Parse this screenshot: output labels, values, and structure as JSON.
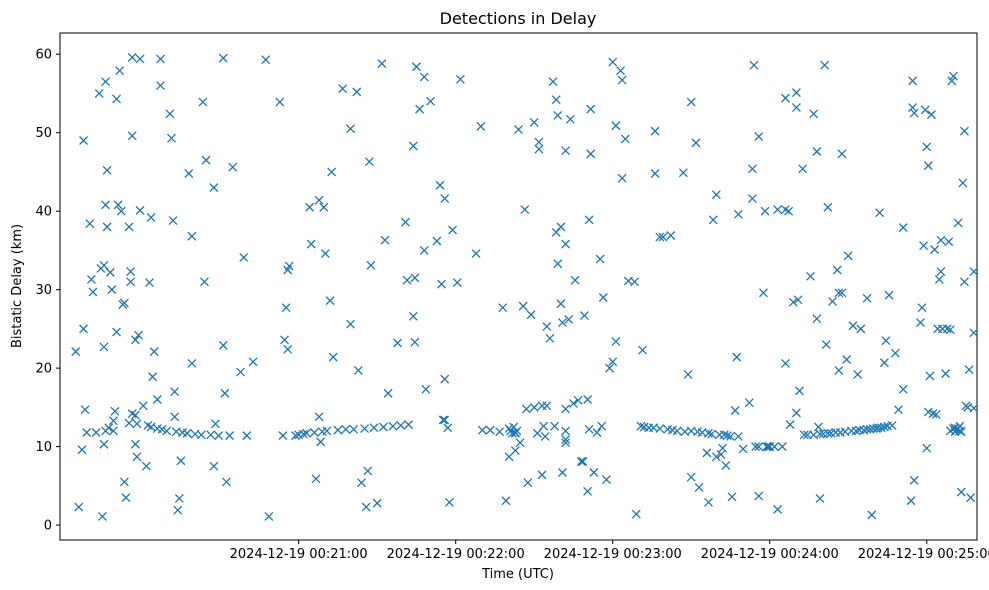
{
  "chart_data": {
    "type": "scatter",
    "title": "Detections in Delay",
    "xlabel": "Time (UTC)",
    "ylabel": "Bistatic Delay (km)",
    "x_unit": "minutes after 2024-12-19 00:20:00",
    "xlim": [
      -0.52,
      5.32
    ],
    "ylim": [
      -1.9,
      62.7
    ],
    "marker": "x",
    "color": "#1f77b4",
    "xtick_values": [
      1,
      2,
      3,
      4,
      5
    ],
    "xtick_labels": [
      "2024-12-19 00:21:00",
      "2024-12-19 00:22:00",
      "2024-12-19 00:23:00",
      "2024-12-19 00:24:00",
      "2024-12-19 00:25:00"
    ],
    "ytick_values": [
      0,
      10,
      20,
      30,
      40,
      50,
      60
    ],
    "ytick_labels": [
      "0",
      "10",
      "20",
      "30",
      "40",
      "50",
      "60"
    ],
    "points": [
      [
        -0.42,
        22.1
      ],
      [
        -0.4,
        2.3
      ],
      [
        -0.38,
        9.6
      ],
      [
        -0.37,
        49.0
      ],
      [
        -0.37,
        25.0
      ],
      [
        -0.36,
        14.7
      ],
      [
        -0.35,
        11.8
      ],
      [
        -0.33,
        38.4
      ],
      [
        -0.32,
        31.3
      ],
      [
        -0.31,
        29.7
      ],
      [
        -0.29,
        11.8
      ],
      [
        -0.27,
        55.0
      ],
      [
        -0.26,
        32.7
      ],
      [
        -0.25,
        1.1
      ],
      [
        -0.24,
        33.1
      ],
      [
        -0.24,
        10.3
      ],
      [
        -0.24,
        22.7
      ],
      [
        -0.23,
        40.8
      ],
      [
        -0.23,
        56.5
      ],
      [
        -0.23,
        12.0
      ],
      [
        -0.22,
        38.0
      ],
      [
        -0.22,
        45.2
      ],
      [
        -0.21,
        12.4
      ],
      [
        -0.2,
        32.2
      ],
      [
        -0.19,
        30.0
      ],
      [
        -0.18,
        13.3
      ],
      [
        -0.18,
        12.0
      ],
      [
        -0.17,
        14.5
      ],
      [
        -0.16,
        54.3
      ],
      [
        -0.16,
        24.6
      ],
      [
        -0.15,
        40.8
      ],
      [
        -0.14,
        57.9
      ],
      [
        -0.13,
        40.0
      ],
      [
        -0.12,
        28.1
      ],
      [
        -0.11,
        28.3
      ],
      [
        -0.11,
        5.5
      ],
      [
        -0.1,
        3.5
      ],
      [
        -0.08,
        38.0
      ],
      [
        -0.08,
        13.0
      ],
      [
        -0.07,
        31.0
      ],
      [
        -0.07,
        32.3
      ],
      [
        -0.06,
        14.2
      ],
      [
        -0.06,
        49.6
      ],
      [
        -0.06,
        59.6
      ],
      [
        -0.04,
        23.6
      ],
      [
        -0.04,
        14.0
      ],
      [
        -0.04,
        10.3
      ],
      [
        -0.03,
        12.9
      ],
      [
        -0.03,
        8.7
      ],
      [
        -0.02,
        24.2
      ],
      [
        -0.01,
        59.4
      ],
      [
        -0.01,
        40.1
      ],
      [
        0.01,
        15.2
      ],
      [
        0.03,
        7.5
      ],
      [
        0.04,
        12.7
      ],
      [
        0.05,
        30.9
      ],
      [
        0.06,
        39.2
      ],
      [
        0.06,
        12.5
      ],
      [
        0.07,
        18.9
      ],
      [
        0.08,
        22.1
      ],
      [
        0.1,
        16.0
      ],
      [
        0.1,
        12.3
      ],
      [
        0.12,
        59.4
      ],
      [
        0.12,
        56.0
      ],
      [
        0.13,
        12.2
      ],
      [
        0.16,
        12.0
      ],
      [
        0.18,
        52.4
      ],
      [
        0.19,
        49.3
      ],
      [
        0.2,
        38.8
      ],
      [
        0.21,
        17.0
      ],
      [
        0.21,
        13.8
      ],
      [
        0.22,
        11.9
      ],
      [
        0.23,
        1.9
      ],
      [
        0.24,
        3.4
      ],
      [
        0.25,
        8.2
      ],
      [
        0.26,
        11.8
      ],
      [
        0.29,
        11.7
      ],
      [
        0.3,
        44.8
      ],
      [
        0.32,
        36.8
      ],
      [
        0.32,
        20.6
      ],
      [
        0.34,
        11.6
      ],
      [
        0.38,
        11.5
      ],
      [
        0.39,
        53.9
      ],
      [
        0.4,
        31.0
      ],
      [
        0.41,
        46.5
      ],
      [
        0.44,
        11.5
      ],
      [
        0.46,
        43.0
      ],
      [
        0.46,
        7.5
      ],
      [
        0.47,
        12.9
      ],
      [
        0.49,
        11.4
      ],
      [
        0.52,
        59.5
      ],
      [
        0.52,
        22.9
      ],
      [
        0.53,
        16.8
      ],
      [
        0.54,
        5.5
      ],
      [
        0.56,
        11.4
      ],
      [
        0.58,
        45.6
      ],
      [
        0.63,
        19.5
      ],
      [
        0.65,
        34.1
      ],
      [
        0.67,
        11.4
      ],
      [
        0.71,
        20.8
      ],
      [
        0.79,
        59.3
      ],
      [
        0.81,
        1.1
      ],
      [
        0.88,
        53.9
      ],
      [
        0.9,
        11.4
      ],
      [
        0.91,
        23.6
      ],
      [
        0.92,
        27.7
      ],
      [
        0.93,
        32.5
      ],
      [
        0.93,
        22.4
      ],
      [
        0.94,
        33.0
      ],
      [
        0.98,
        11.4
      ],
      [
        1.0,
        11.5
      ],
      [
        1.03,
        11.6
      ],
      [
        1.05,
        11.7
      ],
      [
        1.07,
        40.5
      ],
      [
        1.08,
        35.8
      ],
      [
        1.1,
        11.8
      ],
      [
        1.11,
        5.9
      ],
      [
        1.13,
        13.8
      ],
      [
        1.13,
        41.4
      ],
      [
        1.14,
        10.6
      ],
      [
        1.15,
        11.9
      ],
      [
        1.16,
        40.5
      ],
      [
        1.17,
        34.6
      ],
      [
        1.18,
        12.0
      ],
      [
        1.2,
        28.6
      ],
      [
        1.21,
        45.0
      ],
      [
        1.22,
        21.4
      ],
      [
        1.25,
        12.1
      ],
      [
        1.28,
        55.6
      ],
      [
        1.3,
        12.2
      ],
      [
        1.33,
        25.6
      ],
      [
        1.33,
        50.5
      ],
      [
        1.35,
        12.2
      ],
      [
        1.37,
        55.2
      ],
      [
        1.38,
        19.7
      ],
      [
        1.4,
        5.4
      ],
      [
        1.42,
        12.3
      ],
      [
        1.43,
        2.3
      ],
      [
        1.44,
        6.9
      ],
      [
        1.45,
        46.3
      ],
      [
        1.46,
        33.1
      ],
      [
        1.48,
        12.4
      ],
      [
        1.5,
        2.8
      ],
      [
        1.53,
        58.8
      ],
      [
        1.54,
        12.5
      ],
      [
        1.55,
        36.3
      ],
      [
        1.57,
        16.8
      ],
      [
        1.6,
        12.6
      ],
      [
        1.63,
        23.2
      ],
      [
        1.65,
        12.7
      ],
      [
        1.68,
        38.6
      ],
      [
        1.69,
        31.2
      ],
      [
        1.7,
        12.8
      ],
      [
        1.73,
        26.6
      ],
      [
        1.73,
        48.3
      ],
      [
        1.74,
        23.3
      ],
      [
        1.74,
        31.5
      ],
      [
        1.75,
        58.4
      ],
      [
        1.77,
        53.0
      ],
      [
        1.8,
        35.0
      ],
      [
        1.8,
        57.1
      ],
      [
        1.81,
        17.3
      ],
      [
        1.84,
        54.0
      ],
      [
        1.88,
        36.2
      ],
      [
        1.9,
        43.3
      ],
      [
        1.91,
        30.7
      ],
      [
        1.92,
        13.4
      ],
      [
        1.93,
        13.4
      ],
      [
        1.93,
        41.6
      ],
      [
        1.93,
        18.6
      ],
      [
        1.95,
        12.4
      ],
      [
        1.96,
        2.9
      ],
      [
        1.98,
        37.6
      ],
      [
        2.01,
        30.9
      ],
      [
        2.03,
        56.8
      ],
      [
        2.13,
        34.6
      ],
      [
        2.16,
        50.8
      ],
      [
        2.17,
        12.1
      ],
      [
        2.22,
        12.1
      ],
      [
        2.28,
        11.9
      ],
      [
        2.3,
        27.7
      ],
      [
        2.32,
        3.1
      ],
      [
        2.34,
        8.7
      ],
      [
        2.34,
        12.3
      ],
      [
        2.35,
        12.0
      ],
      [
        2.36,
        11.7
      ],
      [
        2.37,
        12.5
      ],
      [
        2.38,
        11.8
      ],
      [
        2.38,
        11.7
      ],
      [
        2.38,
        9.5
      ],
      [
        2.39,
        12.0
      ],
      [
        2.4,
        50.4
      ],
      [
        2.41,
        10.5
      ],
      [
        2.43,
        27.9
      ],
      [
        2.44,
        40.2
      ],
      [
        2.45,
        14.8
      ],
      [
        2.46,
        5.4
      ],
      [
        2.48,
        26.8
      ],
      [
        2.5,
        51.3
      ],
      [
        2.5,
        15.0
      ],
      [
        2.52,
        11.7
      ],
      [
        2.53,
        47.9
      ],
      [
        2.53,
        48.8
      ],
      [
        2.55,
        15.2
      ],
      [
        2.55,
        6.4
      ],
      [
        2.56,
        12.6
      ],
      [
        2.57,
        11.3
      ],
      [
        2.58,
        15.2
      ],
      [
        2.58,
        25.3
      ],
      [
        2.6,
        23.8
      ],
      [
        2.62,
        56.5
      ],
      [
        2.63,
        12.6
      ],
      [
        2.64,
        54.2
      ],
      [
        2.64,
        37.3
      ],
      [
        2.65,
        52.2
      ],
      [
        2.65,
        33.3
      ],
      [
        2.67,
        38.0
      ],
      [
        2.67,
        28.2
      ],
      [
        2.68,
        6.7
      ],
      [
        2.68,
        25.8
      ],
      [
        2.7,
        14.8
      ],
      [
        2.7,
        12.0
      ],
      [
        2.7,
        10.9
      ],
      [
        2.7,
        10.5
      ],
      [
        2.7,
        47.7
      ],
      [
        2.7,
        35.8
      ],
      [
        2.72,
        26.2
      ],
      [
        2.73,
        51.7
      ],
      [
        2.75,
        15.5
      ],
      [
        2.76,
        31.2
      ],
      [
        2.78,
        15.9
      ],
      [
        2.8,
        8.1
      ],
      [
        2.81,
        8.1
      ],
      [
        2.82,
        26.7
      ],
      [
        2.84,
        16.0
      ],
      [
        2.84,
        4.3
      ],
      [
        2.85,
        12.2
      ],
      [
        2.85,
        38.9
      ],
      [
        2.86,
        47.3
      ],
      [
        2.86,
        53.0
      ],
      [
        2.88,
        6.7
      ],
      [
        2.9,
        11.8
      ],
      [
        2.92,
        33.9
      ],
      [
        2.93,
        12.6
      ],
      [
        2.94,
        29.0
      ],
      [
        2.96,
        5.8
      ],
      [
        2.98,
        20.0
      ],
      [
        3.0,
        20.8
      ],
      [
        3.0,
        59.0
      ],
      [
        3.02,
        23.4
      ],
      [
        3.02,
        50.9
      ],
      [
        3.05,
        57.9
      ],
      [
        3.06,
        44.2
      ],
      [
        3.06,
        56.7
      ],
      [
        3.08,
        49.2
      ],
      [
        3.1,
        31.1
      ],
      [
        3.14,
        31.0
      ],
      [
        3.15,
        1.4
      ],
      [
        3.18,
        12.6
      ],
      [
        3.19,
        22.3
      ],
      [
        3.2,
        12.5
      ],
      [
        3.23,
        12.4
      ],
      [
        3.26,
        12.4
      ],
      [
        3.27,
        44.8
      ],
      [
        3.27,
        50.2
      ],
      [
        3.3,
        36.7
      ],
      [
        3.3,
        12.3
      ],
      [
        3.32,
        36.7
      ],
      [
        3.35,
        12.2
      ],
      [
        3.37,
        36.9
      ],
      [
        3.38,
        12.1
      ],
      [
        3.41,
        12.0
      ],
      [
        3.45,
        44.9
      ],
      [
        3.46,
        11.9
      ],
      [
        3.48,
        19.2
      ],
      [
        3.5,
        12.0
      ],
      [
        3.5,
        6.1
      ],
      [
        3.5,
        53.9
      ],
      [
        3.53,
        48.7
      ],
      [
        3.54,
        11.9
      ],
      [
        3.55,
        4.8
      ],
      [
        3.57,
        11.8
      ],
      [
        3.6,
        9.2
      ],
      [
        3.61,
        11.7
      ],
      [
        3.61,
        2.9
      ],
      [
        3.63,
        11.6
      ],
      [
        3.64,
        38.9
      ],
      [
        3.66,
        42.1
      ],
      [
        3.66,
        8.7
      ],
      [
        3.68,
        11.5
      ],
      [
        3.69,
        9.0
      ],
      [
        3.7,
        9.8
      ],
      [
        3.71,
        11.5
      ],
      [
        3.72,
        7.6
      ],
      [
        3.73,
        11.4
      ],
      [
        3.75,
        11.3
      ],
      [
        3.76,
        3.6
      ],
      [
        3.78,
        14.6
      ],
      [
        3.79,
        21.4
      ],
      [
        3.8,
        11.3
      ],
      [
        3.8,
        39.6
      ],
      [
        3.83,
        9.7
      ],
      [
        3.87,
        15.6
      ],
      [
        3.89,
        45.4
      ],
      [
        3.89,
        41.6
      ],
      [
        3.9,
        58.6
      ],
      [
        3.91,
        10.0
      ],
      [
        3.93,
        3.7
      ],
      [
        3.93,
        49.5
      ],
      [
        3.93,
        10.0
      ],
      [
        3.96,
        29.6
      ],
      [
        3.97,
        40.0
      ],
      [
        3.98,
        10.0
      ],
      [
        3.99,
        10.0
      ],
      [
        4.0,
        10.0
      ],
      [
        4.03,
        10.0
      ],
      [
        4.05,
        40.2
      ],
      [
        4.05,
        2.0
      ],
      [
        4.08,
        10.0
      ],
      [
        4.1,
        20.6
      ],
      [
        4.1,
        54.4
      ],
      [
        4.1,
        40.2
      ],
      [
        4.12,
        40.0
      ],
      [
        4.13,
        12.8
      ],
      [
        4.15,
        28.4
      ],
      [
        4.17,
        14.3
      ],
      [
        4.17,
        53.2
      ],
      [
        4.17,
        55.1
      ],
      [
        4.18,
        28.7
      ],
      [
        4.19,
        17.1
      ],
      [
        4.21,
        45.4
      ],
      [
        4.22,
        11.5
      ],
      [
        4.24,
        11.5
      ],
      [
        4.26,
        31.7
      ],
      [
        4.28,
        52.4
      ],
      [
        4.28,
        11.5
      ],
      [
        4.3,
        47.6
      ],
      [
        4.3,
        26.3
      ],
      [
        4.31,
        12.5
      ],
      [
        4.32,
        3.4
      ],
      [
        4.32,
        11.6
      ],
      [
        4.34,
        11.6
      ],
      [
        4.35,
        58.6
      ],
      [
        4.36,
        23.0
      ],
      [
        4.37,
        40.5
      ],
      [
        4.37,
        11.7
      ],
      [
        4.39,
        11.7
      ],
      [
        4.4,
        28.5
      ],
      [
        4.42,
        11.8
      ],
      [
        4.43,
        32.5
      ],
      [
        4.44,
        19.7
      ],
      [
        4.44,
        29.6
      ],
      [
        4.45,
        11.8
      ],
      [
        4.46,
        47.3
      ],
      [
        4.46,
        29.6
      ],
      [
        4.48,
        11.9
      ],
      [
        4.49,
        21.1
      ],
      [
        4.5,
        34.3
      ],
      [
        4.52,
        12.0
      ],
      [
        4.53,
        25.4
      ],
      [
        4.55,
        12.0
      ],
      [
        4.56,
        19.2
      ],
      [
        4.57,
        12.1
      ],
      [
        4.58,
        25.0
      ],
      [
        4.6,
        12.1
      ],
      [
        4.62,
        28.9
      ],
      [
        4.62,
        12.2
      ],
      [
        4.64,
        12.2
      ],
      [
        4.65,
        1.3
      ],
      [
        4.66,
        12.3
      ],
      [
        4.68,
        12.3
      ],
      [
        4.69,
        12.4
      ],
      [
        4.7,
        39.8
      ],
      [
        4.71,
        12.4
      ],
      [
        4.73,
        12.5
      ],
      [
        4.73,
        20.7
      ],
      [
        4.74,
        23.5
      ],
      [
        4.75,
        12.6
      ],
      [
        4.76,
        29.3
      ],
      [
        4.78,
        12.7
      ],
      [
        4.8,
        21.9
      ],
      [
        4.82,
        14.7
      ],
      [
        4.85,
        17.3
      ],
      [
        4.85,
        37.9
      ],
      [
        4.9,
        3.1
      ],
      [
        4.91,
        56.6
      ],
      [
        4.91,
        53.2
      ],
      [
        4.92,
        5.7
      ],
      [
        4.92,
        52.5
      ],
      [
        4.96,
        25.8
      ],
      [
        4.97,
        27.7
      ],
      [
        4.98,
        35.6
      ],
      [
        4.99,
        52.9
      ],
      [
        5.0,
        48.2
      ],
      [
        5.0,
        9.8
      ],
      [
        5.01,
        45.8
      ],
      [
        5.01,
        14.4
      ],
      [
        5.02,
        19.0
      ],
      [
        5.03,
        52.3
      ],
      [
        5.04,
        14.2
      ],
      [
        5.05,
        35.1
      ],
      [
        5.06,
        14.1
      ],
      [
        5.07,
        25.0
      ],
      [
        5.08,
        31.3
      ],
      [
        5.09,
        32.3
      ],
      [
        5.09,
        36.3
      ],
      [
        5.1,
        25.0
      ],
      [
        5.12,
        19.3
      ],
      [
        5.13,
        25.0
      ],
      [
        5.14,
        36.1
      ],
      [
        5.15,
        12.0
      ],
      [
        5.15,
        24.9
      ],
      [
        5.16,
        56.6
      ],
      [
        5.17,
        12.3
      ],
      [
        5.17,
        57.2
      ],
      [
        5.18,
        12.4
      ],
      [
        5.18,
        11.9
      ],
      [
        5.19,
        12.1
      ],
      [
        5.2,
        12.3
      ],
      [
        5.2,
        38.5
      ],
      [
        5.21,
        12.6
      ],
      [
        5.21,
        12.0
      ],
      [
        5.22,
        11.9
      ],
      [
        5.22,
        4.2
      ],
      [
        5.23,
        43.6
      ],
      [
        5.24,
        31.0
      ],
      [
        5.24,
        50.2
      ],
      [
        5.25,
        15.2
      ],
      [
        5.26,
        15.0
      ],
      [
        5.27,
        19.8
      ],
      [
        5.28,
        3.5
      ],
      [
        5.3,
        24.5
      ],
      [
        5.3,
        32.3
      ],
      [
        5.3,
        14.9
      ]
    ]
  }
}
